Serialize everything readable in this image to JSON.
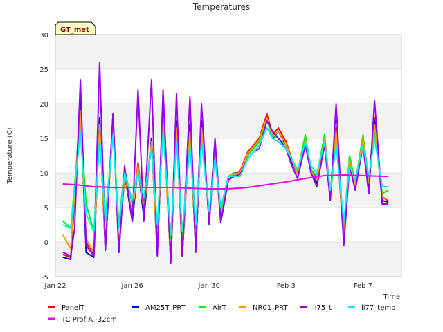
{
  "chart_data": {
    "type": "line",
    "title": "Temperatures",
    "xlabel": "Time",
    "ylabel": "Temperature (C)",
    "ylim": [
      -5,
      30
    ],
    "xlim": [
      0,
      18
    ],
    "x_unit": "days since Jan 22",
    "yticks": [
      -5,
      0,
      5,
      10,
      15,
      20,
      25,
      30
    ],
    "xticks": [
      {
        "value": 0,
        "label": "Jan 22"
      },
      {
        "value": 4,
        "label": "Jan 26"
      },
      {
        "value": 8,
        "label": "Jan 30"
      },
      {
        "value": 12,
        "label": "Feb 3"
      },
      {
        "value": 16,
        "label": "Feb 7"
      }
    ],
    "grid": "horizontal bands",
    "station_badge": "GT_met",
    "legend_position": "bottom",
    "series": [
      {
        "name": "PanelT",
        "color": "#ff0000",
        "x": [
          0.4,
          0.8,
          1.3,
          1.6,
          2.0,
          2.3,
          2.6,
          3.0,
          3.3,
          3.6,
          4.0,
          4.3,
          4.6,
          5.0,
          5.3,
          5.6,
          6.0,
          6.3,
          6.6,
          7.0,
          7.3,
          7.6,
          8.0,
          8.3,
          8.6,
          9.0,
          9.3,
          9.6,
          10.0,
          10.3,
          10.6,
          11.0,
          11.3,
          11.6,
          12.0,
          12.3,
          12.6,
          13.0,
          13.3,
          13.6,
          14.0,
          14.3,
          14.6,
          15.0,
          15.3,
          15.6,
          16.0,
          16.3,
          16.6,
          17.0,
          17.3
        ],
        "values": [
          -1.8,
          -2.2,
          19.5,
          0.0,
          -2.0,
          17.5,
          -1.0,
          18.0,
          -1.2,
          9.5,
          3.8,
          11.5,
          4.0,
          15.0,
          -1.5,
          18.5,
          -2.8,
          17.0,
          -1.8,
          16.5,
          -1.0,
          17.0,
          3.5,
          14.0,
          3.0,
          9.5,
          10.0,
          10.2,
          13.0,
          14.0,
          15.0,
          18.5,
          15.5,
          16.5,
          14.5,
          12.0,
          10.0,
          15.0,
          10.5,
          9.0,
          15.5,
          7.0,
          16.5,
          0.5,
          12.0,
          8.0,
          15.0,
          8.5,
          18.0,
          6.5,
          6.0
        ]
      },
      {
        "name": "AM25T_PRT",
        "color": "#0000cc",
        "x": [
          0.4,
          0.8,
          1.3,
          1.6,
          2.0,
          2.3,
          2.6,
          3.0,
          3.3,
          3.6,
          4.0,
          4.3,
          4.6,
          5.0,
          5.3,
          5.6,
          6.0,
          6.3,
          6.6,
          7.0,
          7.3,
          7.6,
          8.0,
          8.3,
          8.6,
          9.0,
          9.3,
          9.6,
          10.0,
          10.3,
          10.6,
          11.0,
          11.3,
          11.6,
          12.0,
          12.3,
          12.6,
          13.0,
          13.3,
          13.6,
          14.0,
          14.3,
          14.6,
          15.0,
          15.3,
          15.6,
          16.0,
          16.3,
          16.6,
          17.0,
          17.3
        ],
        "values": [
          -2.2,
          -2.5,
          20.5,
          -1.5,
          -2.2,
          18.0,
          -1.2,
          18.5,
          -1.5,
          10.0,
          3.0,
          11.0,
          3.5,
          15.0,
          -1.8,
          18.5,
          -3.0,
          17.5,
          -2.0,
          17.0,
          -1.2,
          17.5,
          3.0,
          13.5,
          2.8,
          9.0,
          9.8,
          10.0,
          12.5,
          13.5,
          14.5,
          18.0,
          15.0,
          16.0,
          14.0,
          11.5,
          9.8,
          14.5,
          10.0,
          8.5,
          15.0,
          6.5,
          16.0,
          0.0,
          11.5,
          8.0,
          14.5,
          8.0,
          17.5,
          6.0,
          5.8
        ]
      },
      {
        "name": "AirT",
        "color": "#00ee00",
        "x": [
          0.4,
          0.8,
          1.3,
          1.6,
          2.0,
          2.3,
          2.6,
          3.0,
          3.3,
          3.6,
          4.0,
          4.3,
          4.6,
          5.0,
          5.3,
          5.6,
          6.0,
          6.3,
          6.6,
          7.0,
          7.3,
          7.6,
          8.0,
          8.3,
          8.6,
          9.0,
          9.3,
          9.6,
          10.0,
          10.3,
          10.6,
          11.0,
          11.3,
          11.6,
          12.0,
          12.3,
          12.6,
          13.0,
          13.3,
          13.6,
          14.0,
          14.3,
          14.6,
          15.0,
          15.3,
          15.6,
          16.0,
          16.3,
          16.6,
          17.0,
          17.3
        ],
        "values": [
          3.0,
          2.0,
          17.5,
          5.5,
          1.5,
          16.0,
          3.5,
          16.0,
          2.5,
          10.5,
          5.5,
          10.5,
          6.0,
          14.0,
          2.0,
          17.0,
          0.5,
          15.5,
          1.0,
          15.0,
          2.0,
          15.5,
          4.0,
          13.0,
          4.5,
          9.5,
          10.0,
          9.8,
          12.5,
          13.5,
          14.5,
          17.5,
          15.5,
          15.0,
          14.0,
          12.0,
          10.0,
          15.5,
          10.5,
          9.5,
          15.5,
          6.5,
          15.0,
          2.0,
          12.5,
          8.5,
          15.5,
          9.0,
          16.0,
          7.0,
          7.5
        ]
      },
      {
        "name": "NR01_PRT",
        "color": "#ff9900",
        "x": [
          0.4,
          0.8,
          1.3,
          1.6,
          2.0,
          2.3,
          2.6,
          3.0,
          3.3,
          3.6,
          4.0,
          4.3,
          4.6,
          5.0,
          5.3,
          5.6,
          6.0,
          6.3,
          6.6,
          7.0,
          7.3,
          7.6,
          8.0,
          8.3,
          8.6,
          9.0,
          9.3,
          9.6,
          10.0,
          10.3,
          10.6,
          11.0,
          11.3,
          11.6,
          12.0,
          12.3,
          12.6,
          13.0,
          13.3,
          13.6,
          14.0,
          14.3,
          14.6,
          15.0,
          15.3,
          15.6,
          16.0,
          16.3,
          16.6,
          17.0,
          17.3
        ],
        "values": [
          1.0,
          -1.0,
          19.0,
          0.5,
          -1.5,
          17.0,
          -0.5,
          17.5,
          -1.0,
          9.8,
          4.0,
          11.0,
          4.5,
          14.5,
          -1.0,
          18.0,
          -3.0,
          16.5,
          -1.5,
          16.0,
          -0.5,
          16.5,
          3.2,
          13.5,
          3.0,
          9.5,
          9.8,
          10.0,
          12.8,
          13.8,
          14.8,
          18.0,
          15.2,
          16.0,
          14.2,
          11.8,
          9.8,
          14.8,
          10.2,
          9.0,
          15.0,
          6.8,
          16.0,
          0.2,
          11.8,
          8.2,
          15.0,
          8.5,
          17.0,
          6.5,
          6.2
        ]
      },
      {
        "name": "li75_t",
        "color": "#9900ee",
        "x": [
          0.4,
          0.8,
          1.0,
          1.3,
          1.6,
          2.0,
          2.3,
          2.6,
          3.0,
          3.3,
          3.6,
          4.0,
          4.3,
          4.6,
          5.0,
          5.3,
          5.6,
          6.0,
          6.3,
          6.6,
          7.0,
          7.3,
          7.6,
          8.0,
          8.3,
          8.6,
          9.0,
          9.3,
          9.6,
          10.0,
          10.3,
          10.6,
          11.0,
          11.3,
          11.6,
          12.0,
          12.3,
          12.6,
          13.0,
          13.3,
          13.6,
          14.0,
          14.3,
          14.6,
          15.0,
          15.3,
          15.6,
          16.0,
          16.3,
          16.6,
          17.0,
          17.3
        ],
        "values": [
          -1.5,
          -2.0,
          2.0,
          23.5,
          -0.5,
          -2.0,
          26.0,
          -1.0,
          18.5,
          -1.5,
          11.0,
          3.0,
          22.0,
          3.0,
          23.5,
          -2.0,
          22.0,
          -3.0,
          21.5,
          -2.0,
          21.0,
          -1.5,
          20.0,
          2.5,
          15.0,
          3.0,
          9.0,
          9.5,
          9.8,
          12.0,
          13.0,
          13.5,
          17.5,
          16.0,
          15.0,
          13.5,
          11.0,
          9.2,
          14.0,
          10.0,
          8.0,
          14.0,
          6.0,
          20.0,
          -0.5,
          11.0,
          7.5,
          14.0,
          7.0,
          20.5,
          5.5,
          5.5
        ]
      },
      {
        "name": "li77_temp",
        "color": "#00eeee",
        "x": [
          0.4,
          0.8,
          1.3,
          1.6,
          2.0,
          2.3,
          2.6,
          3.0,
          3.3,
          3.6,
          4.0,
          4.3,
          4.6,
          5.0,
          5.3,
          5.6,
          6.0,
          6.3,
          6.6,
          7.0,
          7.3,
          7.6,
          8.0,
          8.3,
          8.6,
          9.0,
          9.3,
          9.6,
          10.0,
          10.3,
          10.6,
          11.0,
          11.3,
          11.6,
          12.0,
          12.3,
          12.6,
          13.0,
          13.3,
          13.6,
          14.0,
          14.3,
          14.6,
          15.0,
          15.3,
          15.6,
          16.0,
          16.3,
          16.6,
          17.0,
          17.3
        ],
        "values": [
          2.5,
          2.0,
          16.0,
          4.0,
          1.5,
          15.0,
          3.0,
          15.5,
          2.0,
          10.0,
          6.0,
          10.0,
          6.5,
          13.5,
          2.5,
          16.0,
          1.0,
          14.5,
          1.5,
          14.0,
          2.5,
          14.5,
          4.5,
          12.0,
          5.0,
          9.5,
          9.5,
          9.5,
          12.0,
          13.0,
          14.0,
          16.5,
          15.0,
          14.5,
          13.5,
          12.0,
          10.5,
          14.5,
          11.0,
          10.0,
          14.5,
          7.5,
          14.0,
          3.0,
          11.0,
          9.0,
          14.0,
          9.5,
          15.0,
          8.0,
          8.0
        ]
      },
      {
        "name": "TC Prof A -32cm",
        "color": "#ee00ee",
        "x": [
          0.4,
          1.0,
          2.0,
          3.0,
          4.0,
          5.0,
          6.0,
          7.0,
          8.0,
          9.0,
          10.0,
          11.0,
          12.0,
          13.0,
          14.0,
          15.0,
          16.0,
          17.0,
          17.3
        ],
        "values": [
          8.4,
          8.3,
          8.0,
          7.9,
          7.9,
          7.9,
          7.9,
          7.8,
          7.7,
          7.7,
          7.9,
          8.3,
          8.7,
          9.2,
          9.6,
          9.7,
          9.6,
          9.5,
          9.5
        ]
      }
    ],
    "legend": [
      "PanelT",
      "AM25T_PRT",
      "AirT",
      "NR01_PRT",
      "li75_t",
      "li77_temp",
      "TC Prof A -32cm"
    ]
  }
}
